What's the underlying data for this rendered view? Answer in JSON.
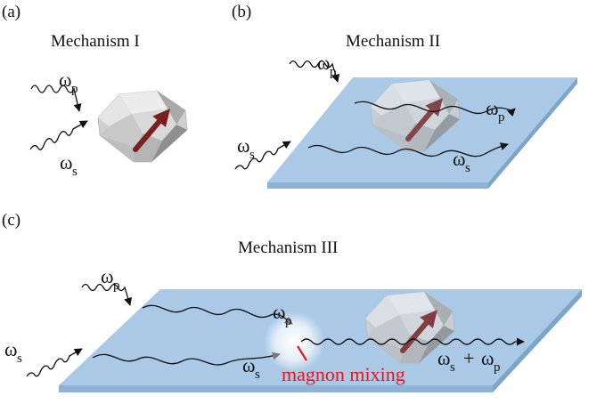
{
  "panels": {
    "a": {
      "tag": "(a)",
      "title": "Mechanism I"
    },
    "b": {
      "tag": "(b)",
      "title": "Mechanism II"
    },
    "c": {
      "tag": "(c)",
      "title": "Mechanism III"
    }
  },
  "symbols": {
    "omega": "ω",
    "p": "p",
    "s": "s",
    "plus": "+"
  },
  "mixing_label": "magnon mixing",
  "colors": {
    "slab_top": "#a9c9e6",
    "slab_side": "#8fb3d6",
    "mixing_text": "#e8161c",
    "spin_arrow": "#8b2a2a",
    "crystal_light": "#e9e9e9",
    "crystal_dark": "#9a9a9a"
  },
  "icons": [
    "magnet-crystal",
    "spin-arrow",
    "photon-wave"
  ]
}
